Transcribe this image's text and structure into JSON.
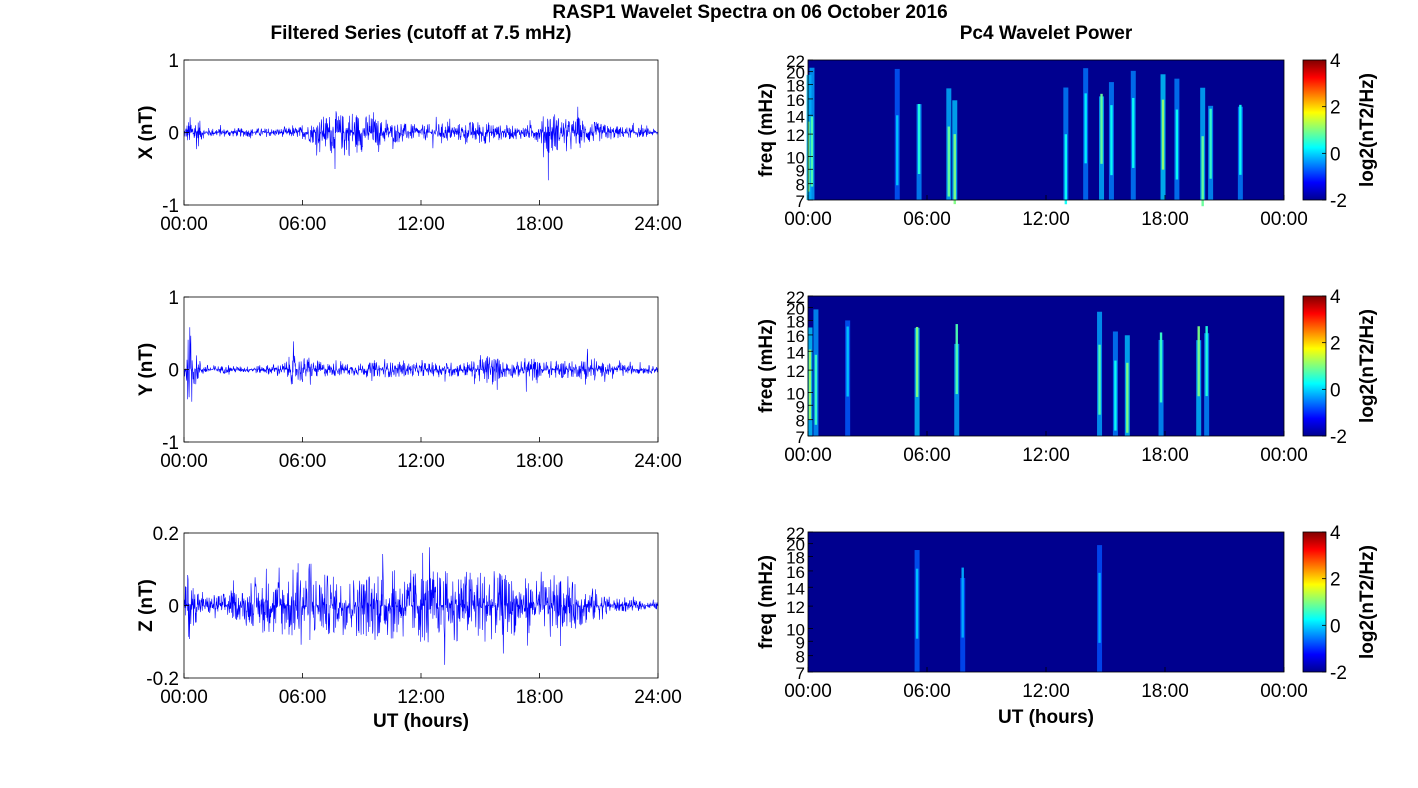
{
  "figure": {
    "title": "RASP1 Wavelet Spectra on 06 October 2016",
    "left_column_title": "Filtered Series (cutoff at 7.5 mHz)",
    "right_column_title": "Pc4 Wavelet Power",
    "x_axis_label": "UT (hours)"
  },
  "chart_data": [
    {
      "type": "line",
      "title": "",
      "ylabel": "X (nT)",
      "xlabel": "",
      "xticks": [
        "00:00",
        "06:00",
        "12:00",
        "18:00",
        "24:00"
      ],
      "xlim": [
        0,
        24
      ],
      "yticks": [
        "-1",
        "0",
        "1"
      ],
      "ylim": [
        -1,
        1
      ],
      "grid": false,
      "color": "#0000ff",
      "envelope": {
        "hours": [
          0,
          0.5,
          1,
          2,
          3,
          4,
          5,
          6,
          7,
          7.5,
          8,
          8.5,
          9,
          10,
          11,
          12,
          13,
          14,
          15,
          16,
          17,
          18,
          18.5,
          19,
          19.5,
          20,
          21,
          22,
          23,
          24
        ],
        "amplitude": [
          0.12,
          0.35,
          0.08,
          0.07,
          0.07,
          0.07,
          0.07,
          0.1,
          0.25,
          0.35,
          0.3,
          0.4,
          0.3,
          0.2,
          0.15,
          0.12,
          0.15,
          0.15,
          0.2,
          0.12,
          0.1,
          0.15,
          0.45,
          0.25,
          0.2,
          0.25,
          0.15,
          0.1,
          0.08,
          0.05
        ]
      }
    },
    {
      "type": "line",
      "title": "",
      "ylabel": "Y (nT)",
      "xlabel": "",
      "xticks": [
        "00:00",
        "06:00",
        "12:00",
        "18:00",
        "24:00"
      ],
      "xlim": [
        0,
        24
      ],
      "yticks": [
        "-1",
        "0",
        "1"
      ],
      "ylim": [
        -1,
        1
      ],
      "grid": false,
      "color": "#0000ff",
      "envelope": {
        "hours": [
          0,
          0.2,
          0.5,
          1,
          2,
          3,
          4,
          5,
          5.5,
          6,
          7,
          8,
          9,
          10,
          11,
          12,
          13,
          14,
          15,
          15.5,
          16,
          17,
          17.5,
          18,
          19,
          20,
          20.5,
          21,
          22,
          24
        ],
        "amplitude": [
          0.15,
          0.5,
          0.3,
          0.08,
          0.06,
          0.05,
          0.07,
          0.1,
          0.25,
          0.2,
          0.12,
          0.1,
          0.1,
          0.12,
          0.12,
          0.1,
          0.12,
          0.12,
          0.15,
          0.3,
          0.15,
          0.12,
          0.25,
          0.12,
          0.15,
          0.12,
          0.3,
          0.12,
          0.08,
          0.06
        ]
      }
    },
    {
      "type": "line",
      "title": "",
      "ylabel": "Z (nT)",
      "xlabel": "UT (hours)",
      "xticks": [
        "00:00",
        "06:00",
        "12:00",
        "18:00",
        "24:00"
      ],
      "xlim": [
        0,
        24
      ],
      "yticks": [
        "-0.2",
        "0",
        "0.2"
      ],
      "ylim": [
        -0.2,
        0.2
      ],
      "grid": false,
      "color": "#0000ff",
      "envelope": {
        "hours": [
          0,
          0.2,
          0.5,
          1,
          2,
          3,
          4,
          5,
          6,
          7,
          8,
          9,
          10,
          11,
          12,
          13,
          14,
          15,
          16,
          17,
          18,
          19,
          20,
          21,
          21.5,
          22,
          23,
          24
        ],
        "amplitude": [
          0.03,
          0.12,
          0.06,
          0.03,
          0.04,
          0.05,
          0.08,
          0.1,
          0.13,
          0.1,
          0.09,
          0.1,
          0.11,
          0.11,
          0.12,
          0.11,
          0.11,
          0.12,
          0.1,
          0.09,
          0.08,
          0.08,
          0.07,
          0.05,
          0.03,
          0.02,
          0.015,
          0.01
        ]
      }
    },
    {
      "type": "heatmap",
      "title": "",
      "ylabel": "freq (mHz)",
      "xlabel": "",
      "xticks": [
        "00:00",
        "06:00",
        "12:00",
        "18:00",
        "00:00"
      ],
      "xlim": [
        0,
        24
      ],
      "yticks": [
        "7",
        "8",
        "9",
        "10",
        "12",
        "14",
        "16",
        "18",
        "20",
        "22"
      ],
      "ylim": [
        7,
        22
      ],
      "ytick_values": [
        7,
        8,
        9,
        10,
        12,
        14,
        16,
        18,
        20,
        22
      ],
      "colorbar": {
        "label": "log2(nT2/Hz)",
        "ticks": [
          "-2",
          "0",
          "2",
          "4"
        ],
        "range": [
          -2,
          4
        ]
      },
      "background_color": "#00008f",
      "streaks": [
        {
          "hour": 0.05,
          "level": 0.55
        },
        {
          "hour": 0.2,
          "level": 0.45
        },
        {
          "hour": 4.5,
          "level": 0.15
        },
        {
          "hour": 5.6,
          "level": 0.35
        },
        {
          "hour": 7.1,
          "level": 0.5
        },
        {
          "hour": 7.4,
          "level": 0.55
        },
        {
          "hour": 13.0,
          "level": 0.3
        },
        {
          "hour": 14.0,
          "level": 0.25
        },
        {
          "hour": 14.8,
          "level": 0.5
        },
        {
          "hour": 15.3,
          "level": 0.3
        },
        {
          "hour": 16.4,
          "level": 0.3
        },
        {
          "hour": 17.9,
          "level": 0.6
        },
        {
          "hour": 18.6,
          "level": 0.3
        },
        {
          "hour": 19.9,
          "level": 0.5
        },
        {
          "hour": 20.3,
          "level": 0.4
        },
        {
          "hour": 21.8,
          "level": 0.3
        }
      ]
    },
    {
      "type": "heatmap",
      "title": "",
      "ylabel": "freq (mHz)",
      "xlabel": "",
      "xticks": [
        "00:00",
        "06:00",
        "12:00",
        "18:00",
        "00:00"
      ],
      "xlim": [
        0,
        24
      ],
      "yticks": [
        "7",
        "8",
        "9",
        "10",
        "12",
        "14",
        "16",
        "18",
        "20",
        "22"
      ],
      "ylim": [
        7,
        22
      ],
      "ytick_values": [
        7,
        8,
        9,
        10,
        12,
        14,
        16,
        18,
        20,
        22
      ],
      "colorbar": {
        "label": "log2(nT2/Hz)",
        "ticks": [
          "-2",
          "0",
          "2",
          "4"
        ],
        "range": [
          -2,
          4
        ]
      },
      "background_color": "#00008f",
      "streaks": [
        {
          "hour": 0.1,
          "level": 0.6
        },
        {
          "hour": 0.4,
          "level": 0.4
        },
        {
          "hour": 2.0,
          "level": 0.15
        },
        {
          "hour": 5.5,
          "level": 0.55
        },
        {
          "hour": 7.5,
          "level": 0.45
        },
        {
          "hour": 14.7,
          "level": 0.45
        },
        {
          "hour": 15.5,
          "level": 0.3
        },
        {
          "hour": 16.1,
          "level": 0.55
        },
        {
          "hour": 17.8,
          "level": 0.4
        },
        {
          "hour": 19.7,
          "level": 0.55
        },
        {
          "hour": 20.1,
          "level": 0.35
        }
      ]
    },
    {
      "type": "heatmap",
      "title": "",
      "ylabel": "freq (mHz)",
      "xlabel": "UT (hours)",
      "xticks": [
        "00:00",
        "06:00",
        "12:00",
        "18:00",
        "00:00"
      ],
      "xlim": [
        0,
        24
      ],
      "yticks": [
        "7",
        "8",
        "9",
        "10",
        "12",
        "14",
        "16",
        "18",
        "20",
        "22"
      ],
      "ylim": [
        7,
        22
      ],
      "ytick_values": [
        7,
        8,
        9,
        10,
        12,
        14,
        16,
        18,
        20,
        22
      ],
      "colorbar": {
        "label": "log2(nT2/Hz)",
        "ticks": [
          "-2",
          "0",
          "2",
          "4"
        ],
        "range": [
          -2,
          4
        ]
      },
      "background_color": "#00008f",
      "streaks": [
        {
          "hour": 5.5,
          "level": 0.15
        },
        {
          "hour": 7.8,
          "level": 0.1
        },
        {
          "hour": 14.7,
          "level": 0.1
        }
      ]
    }
  ]
}
